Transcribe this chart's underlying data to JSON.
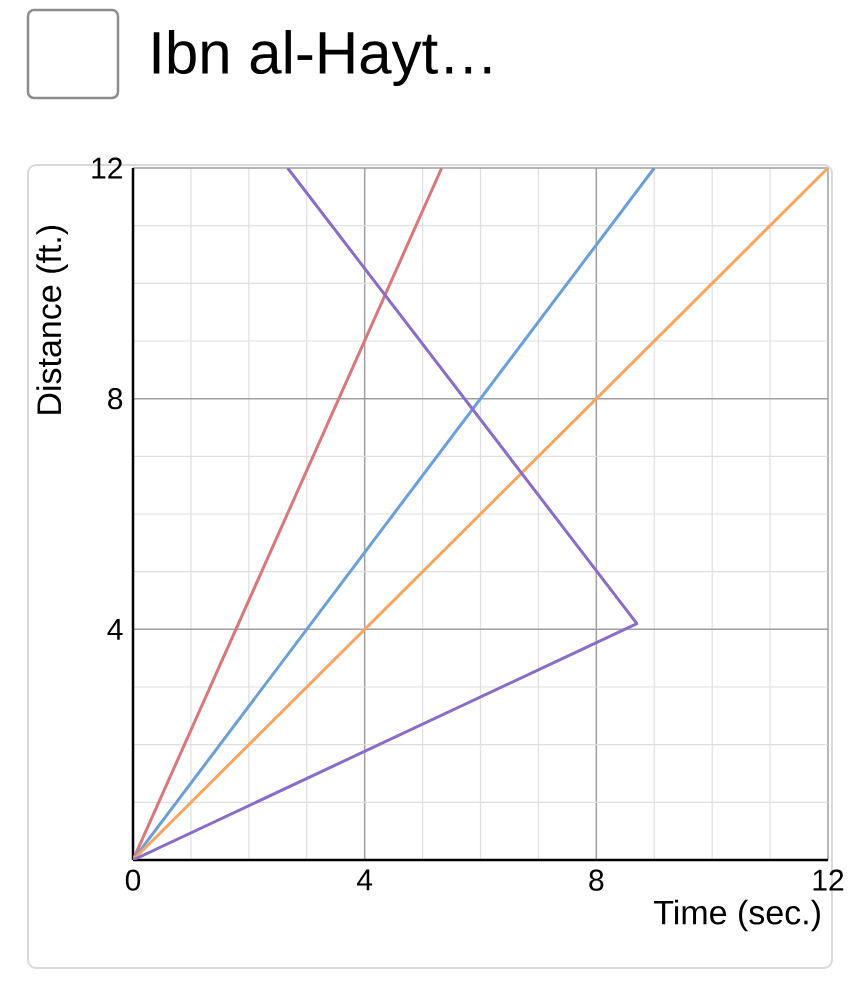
{
  "chart_data": {
    "type": "line",
    "title": "Ibn al-Hayt…",
    "xlabel": "Time (sec.)",
    "ylabel": "Distance (ft.)",
    "xlim": [
      0,
      12
    ],
    "ylim": [
      0,
      12
    ],
    "xticks": [
      0,
      4,
      8,
      12
    ],
    "yticks": [
      {
        "value": 0,
        "label": null
      },
      4,
      8,
      12
    ],
    "grid": true,
    "marker": "none",
    "line_style": "solid",
    "series": [
      {
        "color": "#d9777a",
        "x": [
          0,
          5.33
        ],
        "values": [
          0,
          12
        ]
      },
      {
        "color": "#6a9fd8",
        "x": [
          0,
          9
        ],
        "values": [
          0,
          12
        ]
      },
      {
        "color": "#f9a560",
        "x": [
          0,
          12
        ],
        "values": [
          0,
          12
        ]
      },
      {
        "color": "#8a6cc9",
        "x": [
          0,
          8.7,
          2.67
        ],
        "values": [
          0,
          4.1,
          12
        ]
      }
    ]
  }
}
